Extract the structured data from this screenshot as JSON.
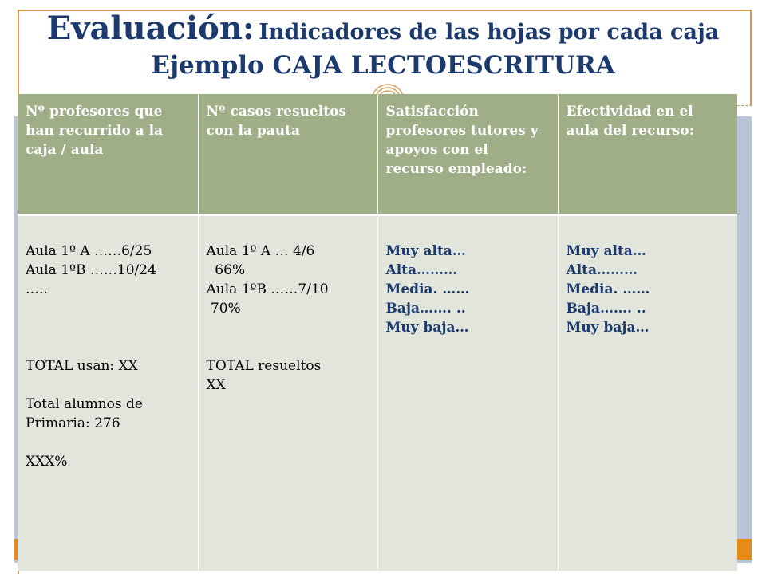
{
  "title": {
    "main": "Evaluación:",
    "subtitle": "Indicadores de las hojas por cada caja",
    "line2": "Ejemplo CAJA LECTOESCRITURA"
  },
  "colors": {
    "title": "#1d3a6e",
    "header_bg": "#9fae87",
    "cell_bg": "#e1e5dc",
    "panel_blue": "#b8c5d8",
    "accent_orange": "#e8891a"
  },
  "table": {
    "headers": [
      "Nº profesores que han recurrido a la caja / aula",
      "Nº casos resueltos con la pauta",
      "Satisfacción profesores tutores y apoyos con el recurso empleado:",
      "Efectividad en el aula del recurso:"
    ],
    "col1": {
      "l1": "Aula 1º A ……6/25",
      "l2": "Aula 1ºB ……10/24",
      "l3": "…..",
      "l4": "TOTAL usan: XX",
      "l5": "Total alumnos de",
      "l6": "Primaria: 276",
      "l7": "XXX%"
    },
    "col2": {
      "l1": "Aula 1º A … 4/6",
      "l2": "  66%",
      "l3": "Aula 1ºB ……7/10",
      "l4": " 70%",
      "l5": "TOTAL resueltos",
      "l6": "XX"
    },
    "col3": {
      "l1": "Muy alta…",
      "l2": "Alta………",
      "l3": "Media. ……",
      "l4": "Baja……. ..",
      "l5": "Muy baja…"
    },
    "col4": {
      "l1": "Muy alta…",
      "l2": "Alta………",
      "l3": "Media. ……",
      "l4": "Baja……. ..",
      "l5": "Muy baja…"
    }
  }
}
